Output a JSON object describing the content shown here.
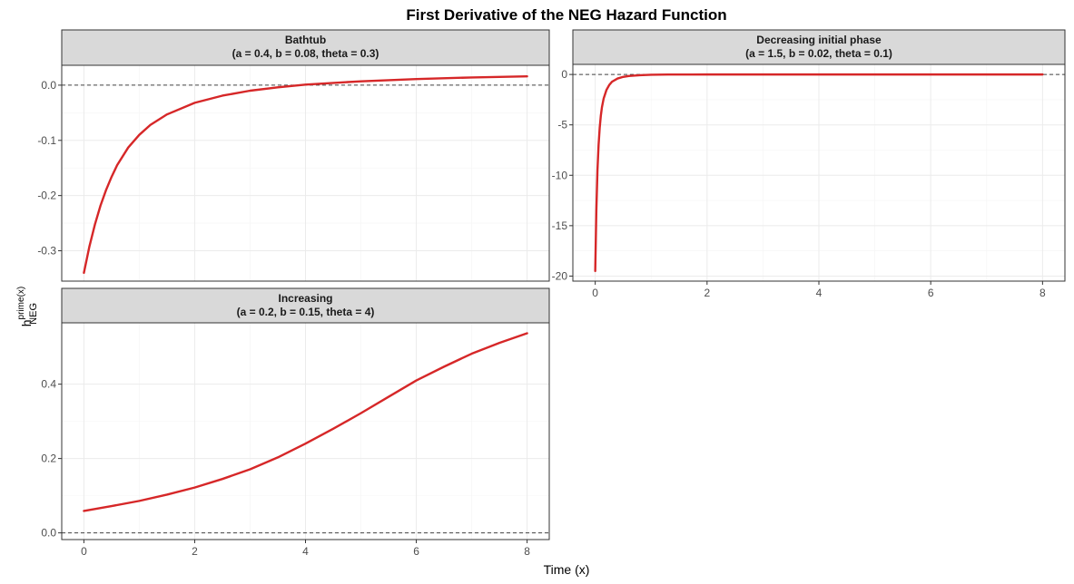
{
  "chart_data": {
    "type": "line",
    "title": "First Derivative of the NEG Hazard Function",
    "xlabel": "Time (x)",
    "ylabel": {
      "base": "h",
      "superscript": "prime(x)",
      "subscript": "NEG"
    },
    "grid": true,
    "line_color": "#d62728",
    "reference_line": {
      "y": 0,
      "style": "dashed"
    },
    "panels": [
      {
        "strip_title": "Bathtub",
        "strip_subtitle": "(a = 0.4, b = 0.08, theta = 0.3)",
        "xlim": [
          -0.4,
          8.4
        ],
        "ylim": [
          -0.355,
          0.036
        ],
        "x_ticks": [],
        "y_ticks": [
          0.0,
          -0.1,
          -0.2,
          -0.3
        ],
        "y_tick_labels": [
          "0.0",
          "-0.1",
          "-0.2",
          "-0.3"
        ],
        "series": [
          {
            "x": [
              0,
              0.1,
              0.2,
              0.3,
              0.4,
              0.5,
              0.6,
              0.8,
              1.0,
              1.2,
              1.5,
              2.0,
              2.5,
              3.0,
              3.5,
              4.0,
              5.0,
              6.0,
              7.0,
              8.0
            ],
            "y": [
              -0.34,
              -0.292,
              -0.252,
              -0.218,
              -0.19,
              -0.166,
              -0.145,
              -0.113,
              -0.09,
              -0.072,
              -0.053,
              -0.032,
              -0.019,
              -0.01,
              -0.004,
              0.001,
              0.007,
              0.011,
              0.014,
              0.016
            ]
          }
        ]
      },
      {
        "strip_title": "Decreasing initial phase",
        "strip_subtitle": "(a = 1.5, b = 0.02, theta = 0.1)",
        "xlim": [
          -0.4,
          8.4
        ],
        "ylim": [
          -20.5,
          1.0
        ],
        "x_ticks": [
          0,
          2,
          4,
          6,
          8
        ],
        "x_tick_labels": [
          "0",
          "2",
          "4",
          "6",
          "8"
        ],
        "y_ticks": [
          0,
          -5,
          -10,
          -15,
          -20
        ],
        "y_tick_labels": [
          "0",
          "-5",
          "-10",
          "-15",
          "-20"
        ],
        "series": [
          {
            "x": [
              0,
              0.02,
              0.04,
              0.06,
              0.08,
              0.1,
              0.12,
              0.15,
              0.2,
              0.25,
              0.3,
              0.4,
              0.5,
              0.6,
              0.8,
              1.0,
              1.3,
              2.0,
              4.0,
              6.0,
              8.0
            ],
            "y": [
              -19.5,
              -13.5,
              -9.5,
              -7.0,
              -5.3,
              -4.1,
              -3.25,
              -2.4,
              -1.55,
              -1.05,
              -0.72,
              -0.4,
              -0.24,
              -0.15,
              -0.07,
              -0.03,
              -0.01,
              0,
              0,
              0,
              0
            ]
          }
        ]
      },
      {
        "strip_title": "Increasing",
        "strip_subtitle": "(a = 0.2, b = 0.15, theta = 4)",
        "xlim": [
          -0.4,
          8.4
        ],
        "ylim": [
          -0.018,
          0.565
        ],
        "x_ticks": [
          0,
          2,
          4,
          6,
          8
        ],
        "x_tick_labels": [
          "0",
          "2",
          "4",
          "6",
          "8"
        ],
        "y_ticks": [
          0.0,
          0.2,
          0.4
        ],
        "y_tick_labels": [
          "0.0",
          "0.2",
          "0.4"
        ],
        "series": [
          {
            "x": [
              0,
              0.5,
              1.0,
              1.5,
              2.0,
              2.5,
              3.0,
              3.5,
              4.0,
              4.5,
              5.0,
              5.5,
              6.0,
              6.5,
              7.0,
              7.5,
              8.0
            ],
            "y": [
              0.059,
              0.072,
              0.086,
              0.103,
              0.122,
              0.145,
              0.171,
              0.203,
              0.24,
              0.28,
              0.322,
              0.366,
              0.41,
              0.447,
              0.482,
              0.511,
              0.537
            ]
          }
        ]
      }
    ]
  }
}
